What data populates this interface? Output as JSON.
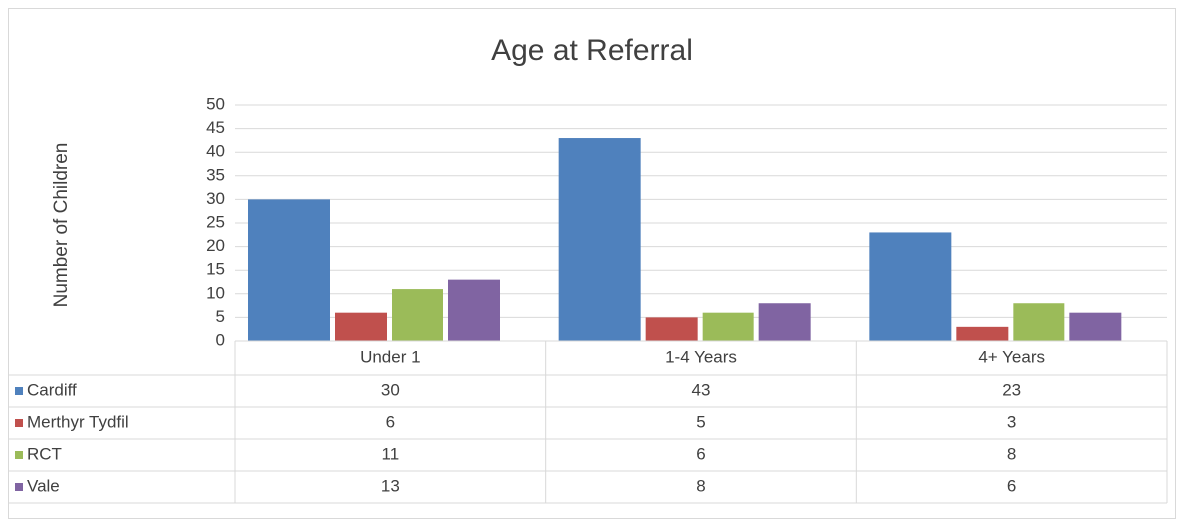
{
  "chart_data": {
    "type": "bar",
    "title": "Age at Referral",
    "y_label": "Number of Children",
    "categories": [
      "Under 1",
      "1-4 Years",
      "4+ Years"
    ],
    "series": [
      {
        "name": "Cardiff",
        "color": "#4f81bd",
        "values": [
          30,
          43,
          23
        ]
      },
      {
        "name": "Merthyr Tydfil",
        "color": "#c0504d",
        "values": [
          6,
          5,
          3
        ]
      },
      {
        "name": "RCT",
        "color": "#9bbb59",
        "values": [
          11,
          6,
          8
        ]
      },
      {
        "name": "Vale",
        "color": "#8064a2",
        "values": [
          13,
          8,
          6
        ]
      }
    ],
    "ylim": [
      0,
      50
    ],
    "yticks": [
      0,
      5,
      10,
      15,
      20,
      25,
      30,
      35,
      40,
      45,
      50
    ],
    "grid": true,
    "data_table": true
  }
}
